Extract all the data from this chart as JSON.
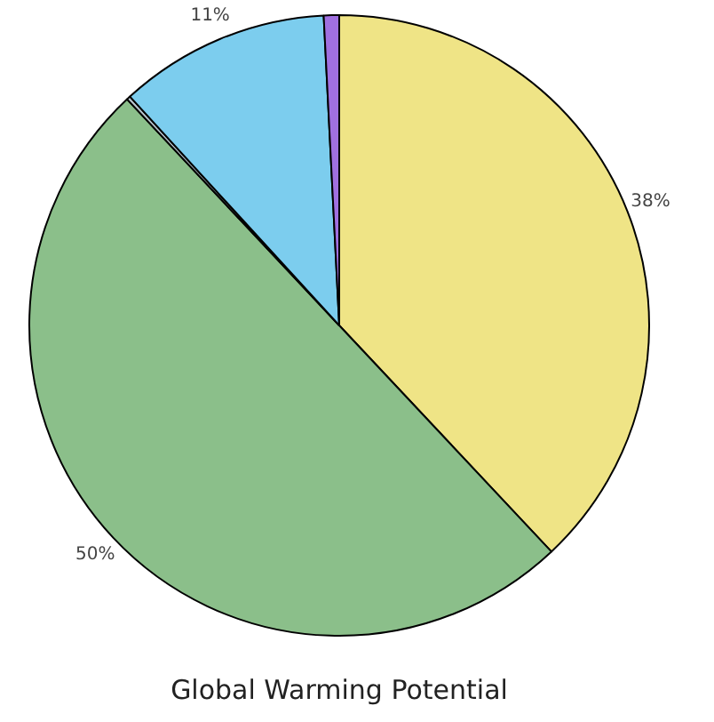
{
  "chart_data": {
    "type": "pie",
    "title": "Global Warming Potential",
    "categories": [
      null,
      null,
      null,
      null,
      null
    ],
    "values": [
      38,
      50,
      0.2,
      11,
      0.8
    ],
    "colors": [
      "#efe486",
      "#8bbf8a",
      "#b8c4cc",
      "#7ccdee",
      "#a070e0"
    ],
    "value_labels": [
      "38%",
      "50%",
      null,
      "11%",
      null
    ],
    "legend": false
  }
}
